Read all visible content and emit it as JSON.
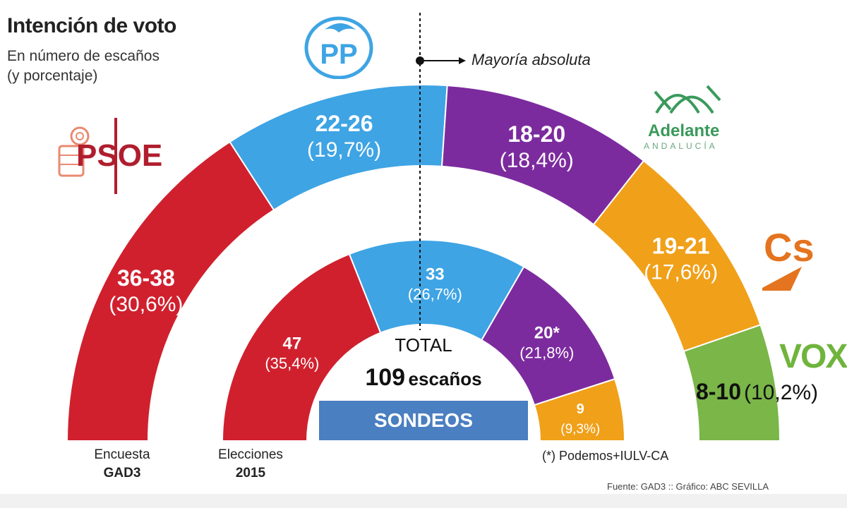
{
  "title": "Intención de voto",
  "subtitle_line1": "En número de escaños",
  "subtitle_line2": "(y porcentaje)",
  "majority_label": "Mayoría absoluta",
  "total_label": "TOTAL",
  "total_seats": "109",
  "total_unit": "escaños",
  "sondeos_label": "SONDEOS",
  "caption_outer_line1": "Encuesta",
  "caption_outer_line2": "GAD3",
  "caption_inner_line1": "Elecciones",
  "caption_inner_line2": "2015",
  "footnote": "(*) Podemos+IULV-CA",
  "source": "Fuente: GAD3 :: Gráfico: ABC SEVILLA",
  "logos": {
    "psoe": "PSOE",
    "pp": "PP",
    "adelante_name": "Adelante",
    "adelante_sub": "ANDALUCÍA",
    "cs": "Cs",
    "vox": "VOX"
  },
  "colors": {
    "psoe": "#d0202e",
    "pp": "#3ea4e4",
    "adelante": "#7c2b9e",
    "cs": "#f0a019",
    "vox": "#7ab648"
  },
  "chart_data": {
    "type": "pie",
    "style": "semicircle-parliament",
    "total_seats": 109,
    "majority_seats": 55,
    "series": [
      {
        "name": "Encuesta GAD3",
        "ring": "outer",
        "slices": [
          {
            "party": "PSOE",
            "label": "36-38",
            "pct_label": "(30,6%)",
            "value": 30.6,
            "color": "#d0202e"
          },
          {
            "party": "PP",
            "label": "22-26",
            "pct_label": "(19,7%)",
            "value": 19.7,
            "color": "#3ea4e4"
          },
          {
            "party": "Adelante Andalucía",
            "label": "18-20",
            "pct_label": "(18,4%)",
            "value": 18.4,
            "color": "#7c2b9e"
          },
          {
            "party": "Cs",
            "label": "19-21",
            "pct_label": "(17,6%)",
            "value": 17.6,
            "color": "#f0a019"
          },
          {
            "party": "VOX",
            "label": "8-10",
            "pct_label": "(10,2%)",
            "value": 10.2,
            "color": "#7ab648"
          }
        ]
      },
      {
        "name": "Elecciones 2015",
        "ring": "inner",
        "slices": [
          {
            "party": "PSOE",
            "label": "47",
            "pct_label": "(35,4%)",
            "value": 35.4,
            "color": "#d0202e"
          },
          {
            "party": "PP",
            "label": "33",
            "pct_label": "(26,7%)",
            "value": 26.7,
            "color": "#3ea4e4"
          },
          {
            "party": "Podemos+IULV-CA",
            "label": "20*",
            "pct_label": "(21,8%)",
            "value": 21.8,
            "color": "#7c2b9e"
          },
          {
            "party": "Cs",
            "label": "9",
            "pct_label": "(9,3%)",
            "value": 9.3,
            "color": "#f0a019"
          }
        ]
      }
    ]
  }
}
